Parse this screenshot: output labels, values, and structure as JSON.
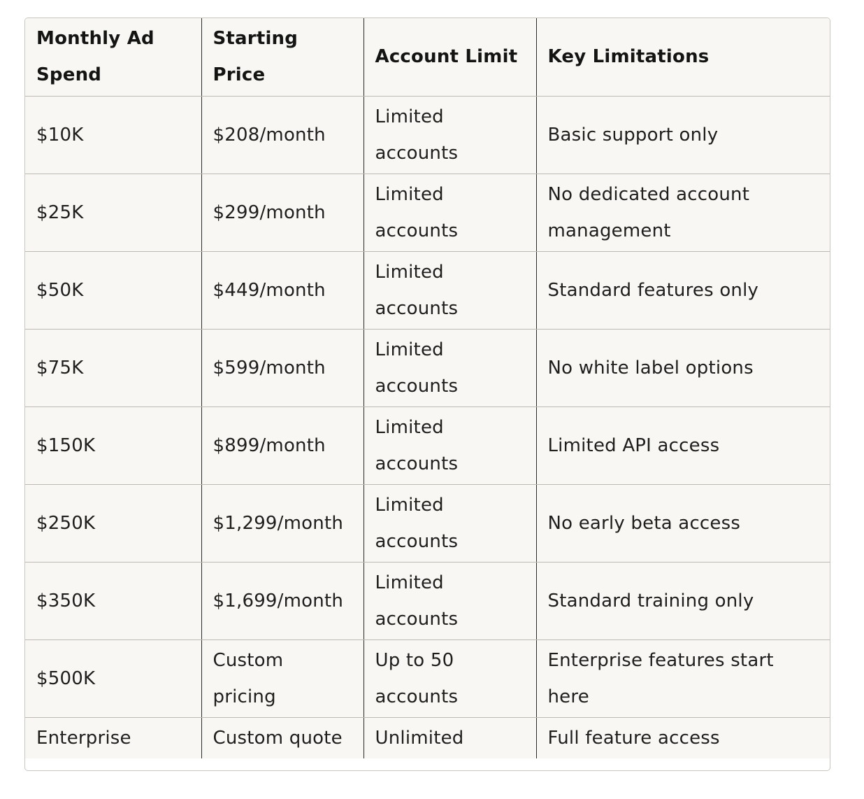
{
  "table": {
    "columns": [
      "Monthly Ad Spend",
      "Starting Price",
      "Account Limit",
      "Key Limitations"
    ],
    "rows": [
      {
        "spend": "$10K",
        "price": "$208/month",
        "limit": "Limited accounts",
        "limitation": "Basic support only"
      },
      {
        "spend": "$25K",
        "price": "$299/month",
        "limit": "Limited accounts",
        "limitation": "No dedicated account management"
      },
      {
        "spend": "$50K",
        "price": "$449/month",
        "limit": "Limited accounts",
        "limitation": "Standard features only"
      },
      {
        "spend": "$75K",
        "price": "$599/month",
        "limit": "Limited accounts",
        "limitation": "No white label options"
      },
      {
        "spend": "$150K",
        "price": "$899/month",
        "limit": "Limited accounts",
        "limitation": "Limited API access"
      },
      {
        "spend": "$250K",
        "price": "$1,299/month",
        "limit": "Limited accounts",
        "limitation": "No early beta access"
      },
      {
        "spend": "$350K",
        "price": "$1,699/month",
        "limit": "Limited accounts",
        "limitation": "Standard training only"
      },
      {
        "spend": "$500K",
        "price": "Custom pricing",
        "limit": "Up to 50 accounts",
        "limitation": "Enterprise features start here"
      },
      {
        "spend": "Enterprise",
        "price": "Custom quote",
        "limit": "Unlimited",
        "limitation": "Full feature access"
      }
    ]
  }
}
